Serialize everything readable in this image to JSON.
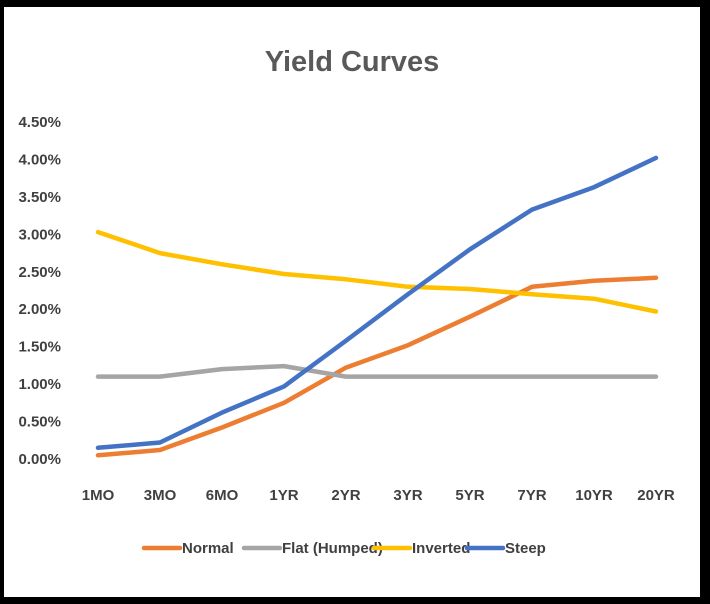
{
  "chart_data": {
    "type": "line",
    "title": "Yield Curves",
    "xlabel": "",
    "ylabel": "",
    "categories": [
      "1MO",
      "3MO",
      "6MO",
      "1YR",
      "2YR",
      "3YR",
      "5YR",
      "7YR",
      "10YR",
      "20YR"
    ],
    "y_ticks": [
      "0.00%",
      "0.50%",
      "1.00%",
      "1.50%",
      "2.00%",
      "2.50%",
      "3.00%",
      "3.50%",
      "4.00%",
      "4.50%"
    ],
    "ylim": [
      0,
      4.5
    ],
    "grid": false,
    "legend_position": "bottom",
    "series": [
      {
        "name": "Normal",
        "color": "#ED7D31",
        "values": [
          0.05,
          0.12,
          0.42,
          0.75,
          1.22,
          1.52,
          1.9,
          2.3,
          2.38,
          2.42
        ]
      },
      {
        "name": "Flat (Humped)",
        "color": "#A5A5A5",
        "values": [
          1.1,
          1.1,
          1.2,
          1.24,
          1.1,
          1.1,
          1.1,
          1.1,
          1.1,
          1.1
        ]
      },
      {
        "name": "Inverted",
        "color": "#FFC000",
        "values": [
          3.03,
          2.75,
          2.6,
          2.47,
          2.4,
          2.3,
          2.27,
          2.2,
          2.14,
          1.97
        ]
      },
      {
        "name": "Steep",
        "color": "#4472C4",
        "values": [
          0.15,
          0.22,
          0.62,
          0.97,
          1.58,
          2.2,
          2.8,
          3.33,
          3.63,
          4.02
        ]
      }
    ]
  }
}
